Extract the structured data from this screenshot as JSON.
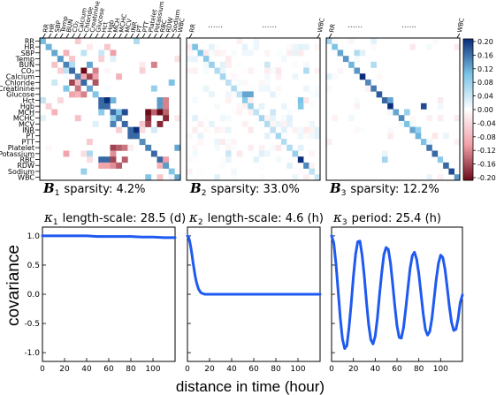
{
  "variables": [
    "RR",
    "HR",
    "SBP",
    "Temp",
    "BUN",
    "CO₂",
    "Calcium",
    "Chloride",
    "Creatinine",
    "Glucose",
    "Hct",
    "Hgb",
    "MCH",
    "MCHC",
    "MCV",
    "INR",
    "PT",
    "PTT",
    "Platelet",
    "Potassium",
    "RBC",
    "RDW",
    "Sodium",
    "WBC"
  ],
  "top_abbrev": {
    "first": "RR",
    "mid": "......",
    "last": "WBC"
  },
  "matrices": [
    {
      "symbol": "B",
      "sub": "1",
      "caption": "sparsity: 4.2%",
      "sparsity_pct": 4.2,
      "entries": [
        [
          0,
          0,
          0.13
        ],
        [
          1,
          1,
          0.14
        ],
        [
          2,
          2,
          0.15
        ],
        [
          3,
          3,
          0.16
        ],
        [
          4,
          4,
          0.18
        ],
        [
          5,
          5,
          0.2
        ],
        [
          6,
          6,
          0.18
        ],
        [
          7,
          7,
          0.2
        ],
        [
          8,
          8,
          0.15
        ],
        [
          9,
          9,
          0.12
        ],
        [
          10,
          10,
          0.2
        ],
        [
          11,
          11,
          0.2
        ],
        [
          12,
          12,
          0.2
        ],
        [
          13,
          13,
          0.18
        ],
        [
          14,
          14,
          0.2
        ],
        [
          15,
          15,
          0.2
        ],
        [
          16,
          16,
          0.2
        ],
        [
          17,
          17,
          0.17
        ],
        [
          18,
          18,
          0.18
        ],
        [
          19,
          19,
          0.2
        ],
        [
          20,
          20,
          0.2
        ],
        [
          21,
          21,
          0.16
        ],
        [
          22,
          22,
          0.12
        ],
        [
          23,
          23,
          0.15
        ],
        [
          10,
          11,
          0.2
        ],
        [
          12,
          14,
          0.18
        ],
        [
          15,
          16,
          0.2
        ],
        [
          20,
          10,
          0.16
        ],
        [
          20,
          11,
          0.16
        ],
        [
          12,
          13,
          0.1
        ],
        [
          4,
          8,
          0.12
        ],
        [
          7,
          22,
          0.1
        ],
        [
          18,
          23,
          0.12
        ],
        [
          10,
          12,
          0.11
        ],
        [
          12,
          18,
          -0.2
        ],
        [
          13,
          18,
          -0.18
        ],
        [
          14,
          18,
          -0.16
        ],
        [
          12,
          19,
          -0.14
        ],
        [
          13,
          21,
          -0.18
        ],
        [
          12,
          20,
          -0.2
        ],
        [
          14,
          20,
          -0.18
        ],
        [
          5,
          7,
          -0.2
        ],
        [
          6,
          8,
          -0.16
        ],
        [
          5,
          9,
          -0.12
        ],
        [
          7,
          9,
          -0.15
        ],
        [
          6,
          9,
          -0.1
        ],
        [
          2,
          4,
          -0.08
        ],
        [
          3,
          5,
          -0.06
        ],
        [
          10,
          21,
          -0.12
        ],
        [
          11,
          21,
          -0.12
        ],
        [
          12,
          21,
          -0.14
        ],
        [
          20,
          21,
          -0.1
        ],
        [
          4,
          19,
          -0.12
        ],
        [
          6,
          13,
          -0.08
        ],
        [
          2,
          12,
          -0.1
        ],
        [
          1,
          11,
          -0.06
        ],
        [
          8,
          19,
          0.08
        ],
        [
          6,
          7,
          -0.09
        ],
        [
          3,
          10,
          -0.05
        ],
        [
          4,
          5,
          0.06
        ],
        [
          2,
          7,
          0.05
        ]
      ]
    },
    {
      "symbol": "B",
      "sub": "2",
      "caption": "sparsity: 33.0%",
      "sparsity_pct": 33.0,
      "entries": [
        [
          1,
          1,
          0.1
        ],
        [
          2,
          2,
          0.1
        ],
        [
          3,
          3,
          0.09
        ],
        [
          4,
          4,
          0.08
        ],
        [
          5,
          5,
          0.06
        ],
        [
          6,
          6,
          0.07
        ],
        [
          7,
          7,
          0.05
        ],
        [
          8,
          8,
          0.06
        ],
        [
          9,
          9,
          0.05
        ],
        [
          10,
          10,
          0.09
        ],
        [
          11,
          11,
          0.08
        ],
        [
          12,
          12,
          0.05
        ],
        [
          13,
          13,
          0.07
        ],
        [
          14,
          14,
          0.06
        ],
        [
          15,
          15,
          0.05
        ],
        [
          16,
          16,
          0.07
        ],
        [
          17,
          17,
          0.06
        ],
        [
          18,
          18,
          0.06
        ],
        [
          19,
          19,
          0.08
        ],
        [
          20,
          20,
          0.2
        ],
        [
          21,
          21,
          0.14
        ],
        [
          22,
          22,
          0.05
        ],
        [
          23,
          23,
          0.04
        ],
        [
          9,
          10,
          0.12
        ],
        [
          9,
          11,
          0.12
        ],
        [
          10,
          20,
          0.1
        ],
        [
          11,
          20,
          0.09
        ],
        [
          5,
          21,
          0.06
        ],
        [
          12,
          15,
          0.04
        ],
        [
          4,
          14,
          0.04
        ],
        [
          19,
          7,
          0.04
        ]
      ]
    },
    {
      "symbol": "B",
      "sub": "3",
      "caption": "sparsity: 12.2%",
      "sparsity_pct": 12.2,
      "entries": [
        [
          0,
          0,
          0.07
        ],
        [
          1,
          1,
          0.1
        ],
        [
          2,
          2,
          0.12
        ],
        [
          3,
          3,
          0.13
        ],
        [
          4,
          4,
          0.11
        ],
        [
          5,
          5,
          0.13
        ],
        [
          6,
          6,
          0.2
        ],
        [
          7,
          7,
          0.14
        ],
        [
          8,
          8,
          0.15
        ],
        [
          9,
          9,
          0.17
        ],
        [
          10,
          10,
          0.16
        ],
        [
          11,
          11,
          0.2
        ],
        [
          12,
          12,
          0.12
        ],
        [
          13,
          13,
          0.14
        ],
        [
          14,
          14,
          0.1
        ],
        [
          15,
          15,
          0.12
        ],
        [
          16,
          16,
          0.11
        ],
        [
          17,
          17,
          0.1
        ],
        [
          18,
          18,
          0.15
        ],
        [
          19,
          19,
          0.16
        ],
        [
          20,
          20,
          0.09
        ],
        [
          21,
          21,
          0.16
        ],
        [
          22,
          22,
          0.18
        ],
        [
          23,
          23,
          0.13
        ],
        [
          10,
          11,
          0.12
        ],
        [
          12,
          14,
          0.08
        ],
        [
          11,
          17,
          0.18
        ],
        [
          15,
          16,
          0.08
        ],
        [
          2,
          5,
          0.06
        ],
        [
          4,
          8,
          0.06
        ],
        [
          20,
          10,
          0.07
        ]
      ]
    }
  ],
  "colorbar": {
    "ticks": [
      "0.20",
      "0.16",
      "0.12",
      "0.08",
      "0.04",
      "0.00",
      "-0.04",
      "-0.08",
      "-0.12",
      "-0.16",
      "-0.20"
    ],
    "min": -0.2,
    "max": 0.2
  },
  "colors": {
    "positive": "#1f5fad",
    "negative": "#a51c2a",
    "curve": "#1f5af0"
  },
  "chart_data": [
    {
      "type": "line",
      "symbol": "κ",
      "sub": "1",
      "caption": "length-scale: 28.5 (d)",
      "length_scale_days": 28.5,
      "x": [
        0,
        10,
        20,
        30,
        40,
        50,
        60,
        70,
        80,
        90,
        100,
        110,
        120
      ],
      "y": [
        1.0,
        1.0,
        1.0,
        1.0,
        1.0,
        0.99,
        0.99,
        0.99,
        0.99,
        0.98,
        0.98,
        0.97,
        0.97
      ],
      "xlim": [
        0,
        120
      ],
      "ylim": [
        -1.15,
        1.15
      ]
    },
    {
      "type": "line",
      "symbol": "κ",
      "sub": "2",
      "caption": "length-scale: 4.6 (h)",
      "length_scale_hours": 4.6,
      "x": [
        0,
        1,
        2,
        3,
        4,
        5,
        6,
        7,
        8,
        9,
        10,
        12,
        14,
        16,
        20,
        30,
        40,
        60,
        80,
        100,
        120
      ],
      "y": [
        1.0,
        0.98,
        0.91,
        0.81,
        0.69,
        0.55,
        0.43,
        0.31,
        0.22,
        0.15,
        0.09,
        0.03,
        0.01,
        0.0,
        0.0,
        0.0,
        0.0,
        0.0,
        0.0,
        0.0,
        0.0
      ],
      "xlim": [
        0,
        120
      ],
      "ylim": [
        -1.15,
        1.15
      ]
    },
    {
      "type": "line",
      "symbol": "κ",
      "sub": "3",
      "caption": "period: 25.4 (h)",
      "period_hours": 25.4,
      "x": [
        0,
        2,
        4,
        6,
        8,
        10,
        12,
        14,
        16,
        18,
        20,
        22,
        24,
        26,
        28,
        30,
        32,
        34,
        36,
        38,
        40,
        42,
        44,
        46,
        48,
        50,
        52,
        54,
        56,
        58,
        60,
        62,
        64,
        66,
        68,
        70,
        72,
        74,
        76,
        78,
        80,
        82,
        84,
        86,
        88,
        90,
        92,
        94,
        96,
        98,
        100,
        102,
        104,
        106,
        108,
        110,
        112,
        114,
        116,
        118,
        120
      ],
      "y": [
        1.0,
        0.88,
        0.53,
        0.06,
        -0.41,
        -0.77,
        -0.93,
        -0.88,
        -0.57,
        -0.16,
        0.3,
        0.68,
        0.9,
        0.91,
        0.67,
        0.31,
        -0.13,
        -0.52,
        -0.78,
        -0.85,
        -0.72,
        -0.41,
        0.0,
        0.37,
        0.68,
        0.8,
        0.77,
        0.54,
        0.18,
        -0.2,
        -0.54,
        -0.74,
        -0.75,
        -0.57,
        -0.25,
        0.1,
        0.44,
        0.66,
        0.72,
        0.6,
        0.35,
        0.01,
        -0.33,
        -0.6,
        -0.7,
        -0.64,
        -0.42,
        -0.08,
        0.26,
        0.53,
        0.67,
        0.63,
        0.43,
        0.12,
        -0.21,
        -0.48,
        -0.62,
        -0.6,
        -0.42,
        -0.14,
        -0.01
      ],
      "xlim": [
        0,
        120
      ],
      "ylim": [
        -1.15,
        1.15
      ]
    }
  ],
  "x_ticks": [
    "0",
    "20",
    "40",
    "60",
    "80",
    "100"
  ],
  "y_ticks": [
    "1.0",
    "0.5",
    "0.0",
    "-0.5",
    "-1.0"
  ],
  "ylabel": "covariance",
  "xlabel": "distance in time (hour)"
}
